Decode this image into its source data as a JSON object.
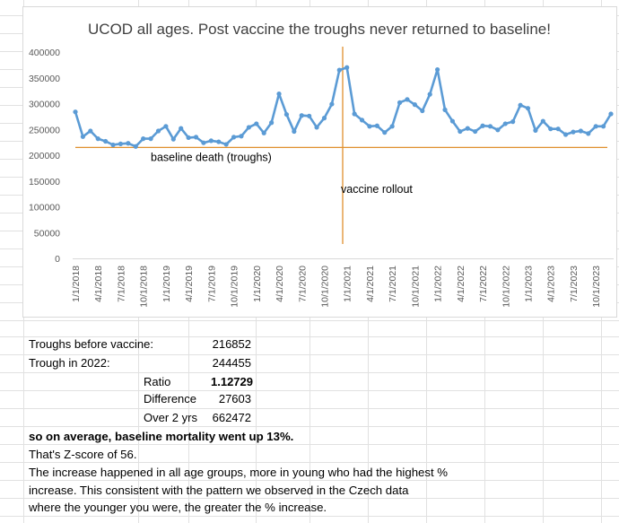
{
  "chart_data": {
    "type": "line",
    "title": "UCOD all ages. Post vaccine the troughs never returned to baseline!",
    "xlabel": "",
    "ylabel": "",
    "ylim": [
      0,
      400000
    ],
    "yticks": [
      0,
      50000,
      100000,
      150000,
      200000,
      250000,
      300000,
      350000,
      400000
    ],
    "ytick_labels": [
      "0",
      "50000",
      "100000",
      "150000",
      "200000",
      "250000",
      "300000",
      "350000",
      "400000"
    ],
    "x_tick_labels": [
      "1/1/2018",
      "4/1/2018",
      "7/1/2018",
      "10/1/2018",
      "1/1/2019",
      "4/1/2019",
      "7/1/2019",
      "10/1/2019",
      "1/1/2020",
      "4/1/2020",
      "7/1/2020",
      "10/1/2020",
      "1/1/2021",
      "4/1/2021",
      "7/1/2021",
      "10/1/2021",
      "1/1/2022",
      "4/1/2022",
      "7/1/2022",
      "10/1/2022",
      "1/1/2023",
      "4/1/2023",
      "7/1/2023",
      "10/1/2023"
    ],
    "grid": false,
    "legend": "none",
    "series": [
      {
        "color": "#5b9bd5",
        "values": [
          284000,
          236000,
          247000,
          232000,
          227000,
          220000,
          222000,
          223000,
          217000,
          232000,
          232000,
          247000,
          256000,
          231000,
          252000,
          234000,
          235000,
          224000,
          228000,
          226000,
          221000,
          235000,
          237000,
          254000,
          261000,
          243000,
          263000,
          319000,
          279000,
          246000,
          277000,
          276000,
          254000,
          272000,
          299000,
          365000,
          370000,
          280000,
          268000,
          256000,
          257000,
          244000,
          256000,
          302000,
          308000,
          298000,
          286000,
          318000,
          366000,
          288000,
          266000,
          246000,
          252000,
          246000,
          257000,
          256000,
          249000,
          261000,
          265000,
          297000,
          291000,
          248000,
          266000,
          251000,
          251000,
          240000,
          245000,
          247000,
          242000,
          256000,
          256000,
          280000
        ]
      }
    ],
    "baseline": {
      "value": 215000,
      "color": "#e0902e",
      "label": "baseline death (troughs)"
    },
    "vaccine_marker": {
      "index": 35.5,
      "color": "#e0902e",
      "label": "vaccine rollout"
    }
  },
  "table": {
    "troughs_before_label": "Troughs before vaccine:",
    "troughs_before_value": "216852",
    "trough_2022_label": "Trough in 2022:",
    "trough_2022_value": "244455",
    "ratio_label": "Ratio",
    "ratio_value": "1.12729",
    "difference_label": "Difference",
    "difference_value": "27603",
    "over2_label": "Over 2 yrs",
    "over2_value": "662472"
  },
  "notes": {
    "line1": "so on average, baseline mortality went up 13%.",
    "line2": "That's Z-score of 56.",
    "line3": "The increase happened in all age groups, more in young who had the highest %",
    "line4": "increase. This consistent with the pattern we observed in the Czech data",
    "line5": "where the younger you were, the greater the % increase."
  }
}
